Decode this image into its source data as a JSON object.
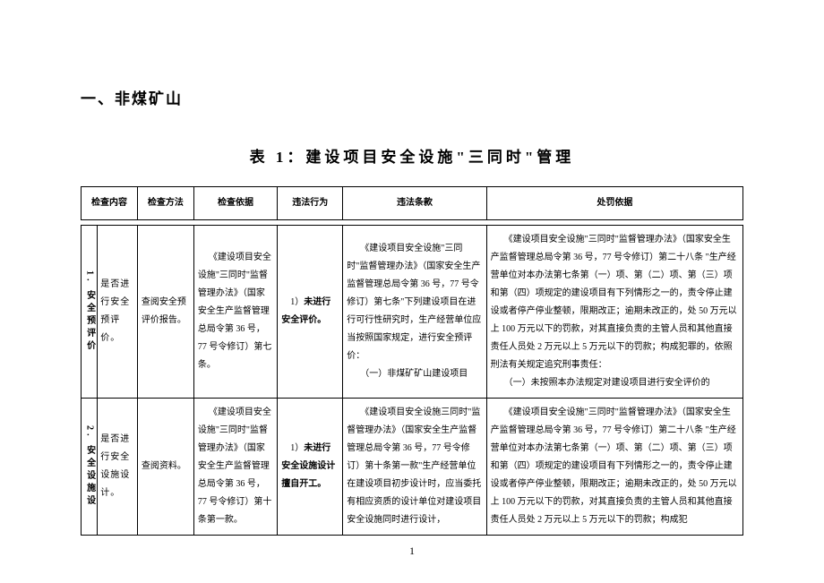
{
  "section_heading": "一、非煤矿山",
  "table_title": "表 1：建设项目安全设施\"三同时\"管理",
  "columns": [
    "检查内容",
    "检查方法",
    "检查依据",
    "违法行为",
    "违法条款",
    "处罚依据"
  ],
  "rows": [
    {
      "idx": "1. 安全预评价",
      "item": "是否进行安全预评价。",
      "method": "查阅安全预评价报告。",
      "basis": "《建设项目安全设施\"三同时\"监督管理办法》（国家安全生产监督管理总局令第 36 号，77 号令修订）第七条。",
      "act_pre": "1）",
      "act_bold": "未进行安全评价。",
      "clause_p1": "《建设项目安全设施\"三同时\"监督管理办法》（国家安全生产监督管理总局令第 36 号，77 号令修订）第七条\"下列建设项目在进行可行性研究时，生产经营单位应当按照国家规定，进行安全预评价：",
      "clause_p2": "（一）非煤矿矿山建设项目",
      "punish_p1": "《建设项目安全设施\"三同时\"监督管理办法》（国家安全生产监督管理总局令第 36 号，77 号令修订）第二十八条 \"生产经营单位对本办法第七条第（一）项、第（二）项、第（三）项和第（四）项规定的建设项目有下列情形之一的，责令停止建设或者停产停业整顿，限期改正；逾期未改正的，处 50 万元以上 100 万元以下的罚款，对其直接负责的主管人员和其他直接责任人员处 2 万元以上 5 万元以下的罚款；构成犯罪的，依照刑法有关规定追究刑事责任：",
      "punish_p2": "（一）未按照本办法规定对建设项目进行安全评价的"
    },
    {
      "idx": "2. 安全设施设",
      "item": "是否进行安全设施设计。",
      "method": "查阅资料。",
      "basis": "《建设项目安全设施\"三同时\"监督管理办法》（国家安全生产监督管理总局令第 36 号，77 号令修订）第十条第一款。",
      "act_pre": "1）",
      "act_bold": "未进行安全设施设计擅自开工。",
      "clause_p1": "《建设项目安全设施三同时\"监督管理办法》（国家安全生产监督管理总局令第 36 号，77 号令修订）第十条第一款\"生产经营单位在建设项目初步设计时，应当委托有相应资质的设计单位对建设项目安全设施同时进行设计，",
      "clause_p2": "",
      "punish_p1": "《建设项目安全设施\"三同时\"监督管理办法》（国家安全生产监督管理总局令第 36 号，77 号令修订）第二十八条 \"生产经营单位对本办法第七条第（一）项、第（二）项、第（三）项和第（四）项规定的建设项目有下列情形之一的，责令停止建设或者停产停业整顿，限期改正；逾期未改正的，处 50 万元以上 100 万元以下的罚款，对其直接负责的主管人员和其他直接责任人员处 2 万元以上 5 万元以下的罚款；构成犯",
      "punish_p2": ""
    }
  ],
  "page_number": "1",
  "colors": {
    "text": "#000000",
    "border": "#000000",
    "bg": "#ffffff"
  },
  "fontsize": {
    "heading": 17,
    "title": 17,
    "body": 10
  }
}
